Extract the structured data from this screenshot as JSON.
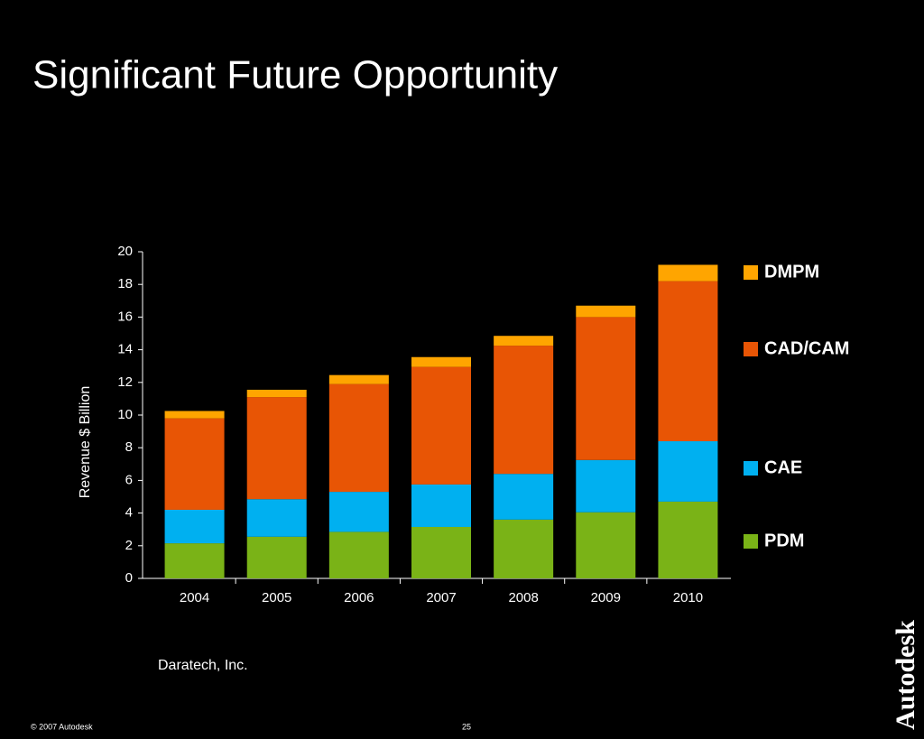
{
  "chart_data": {
    "type": "stacked_bar",
    "title": "Significant Future Opportunity",
    "y_label": "Revenue  $ Billion",
    "source": "Daratech, Inc.",
    "categories": [
      "2004",
      "2005",
      "2006",
      "2007",
      "2008",
      "2009",
      "2010"
    ],
    "series": [
      {
        "name": "PDM",
        "color": "#7ab317",
        "values": [
          2.15,
          2.55,
          2.85,
          3.15,
          3.6,
          4.05,
          4.7
        ]
      },
      {
        "name": "CAE",
        "color": "#00b0f0",
        "values": [
          2.05,
          2.3,
          2.45,
          2.6,
          2.8,
          3.2,
          3.7
        ]
      },
      {
        "name": "CAD/CAM",
        "color": "#e85505",
        "values": [
          5.6,
          6.25,
          6.6,
          7.2,
          7.85,
          8.75,
          9.8
        ]
      },
      {
        "name": "DMPM",
        "color": "#ffa500",
        "values": [
          0.45,
          0.45,
          0.55,
          0.6,
          0.6,
          0.7,
          1.0
        ]
      }
    ],
    "ylim": [
      0,
      20
    ],
    "yticks": [
      0,
      2,
      4,
      6,
      8,
      10,
      12,
      14,
      16,
      18,
      20
    ]
  },
  "footer": {
    "copyright": "© 2007 Autodesk",
    "page_number": "25",
    "logo": "Autodesk"
  }
}
